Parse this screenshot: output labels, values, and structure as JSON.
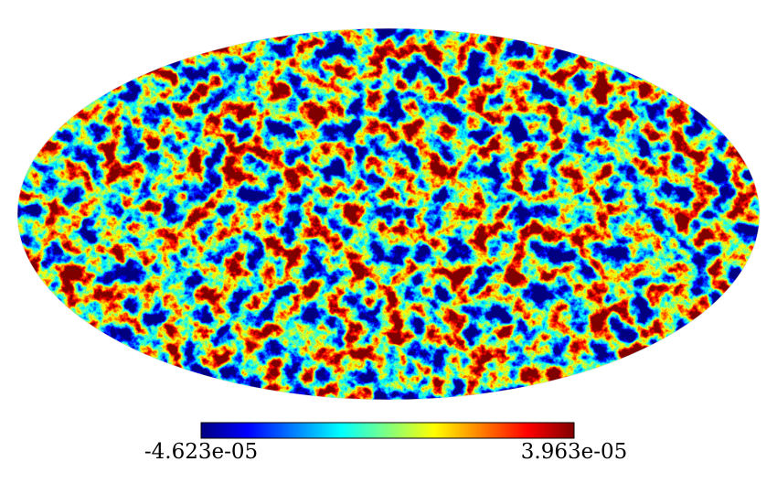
{
  "chart_data": {
    "type": "mollweide",
    "colorbar": {
      "lim": [
        -4.623e-05,
        3.963e-05
      ],
      "ticks": [
        {
          "value": -4.623e-05,
          "label": "-4.623e-05"
        },
        {
          "value": 3.963e-05,
          "label": "3.963e-05"
        }
      ],
      "colormap": [
        "#000080",
        "#0000ff",
        "#0080ff",
        "#00ffff",
        "#80ff80",
        "#ffff00",
        "#ff8000",
        "#ff0000",
        "#800000"
      ]
    }
  }
}
